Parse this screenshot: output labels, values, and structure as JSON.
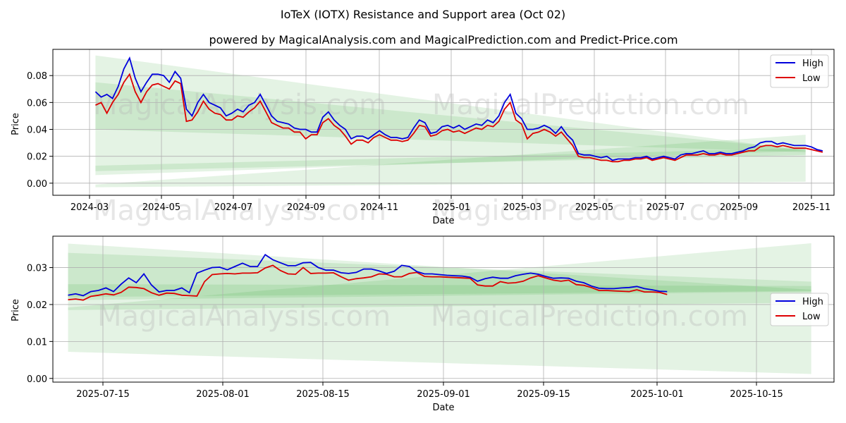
{
  "title": "IoTeX (IOTX) Resistance and Support area (Oct 02)",
  "subtitle": "powered by MagicalAnalysis.com and MagicalPrediction.com and Predict-Price.com",
  "watermarks": [
    "MagicalAnalysis.com",
    "MagicalPrediction.com"
  ],
  "colors": {
    "high": "#0000dd",
    "low": "#dd0000",
    "band": "#2ca02c"
  },
  "chart_data": [
    {
      "type": "line",
      "panel": "top",
      "xlabel": "Date",
      "ylabel": "Price",
      "x_ticks": [
        "2024-03",
        "2024-05",
        "2024-07",
        "2024-09",
        "2024-11",
        "2025-01",
        "2025-03",
        "2025-05",
        "2025-07",
        "2025-09",
        "2025-11"
      ],
      "y_ticks": [
        "0.00",
        "0.02",
        "0.04",
        "0.06",
        "0.08"
      ],
      "x_range_days": [
        -15,
        260
      ],
      "ylim": [
        -0.009,
        0.0995
      ],
      "legend": {
        "position": "top-right",
        "entries": [
          "High",
          "Low"
        ]
      },
      "series_points": {
        "x_days": [
          0,
          2,
          4,
          6,
          8,
          10,
          12,
          14,
          16,
          18,
          20,
          22,
          24,
          26,
          28,
          30,
          32,
          34,
          36,
          38,
          40,
          42,
          44,
          46,
          48,
          50,
          52,
          54,
          56,
          58,
          60,
          62,
          64,
          66,
          68,
          70,
          72,
          74,
          76,
          78,
          80,
          82,
          84,
          86,
          88,
          90,
          92,
          94,
          96,
          98,
          100,
          102,
          104,
          106,
          108,
          110,
          112,
          114,
          116,
          118,
          120,
          122,
          124,
          126,
          128,
          130,
          132,
          134,
          136,
          138,
          140,
          142,
          144,
          146,
          148,
          150,
          152,
          154,
          156,
          158,
          160,
          162,
          164,
          166,
          168,
          170,
          172,
          174,
          176,
          178,
          180,
          182,
          184,
          186,
          188,
          190,
          192,
          194,
          196,
          198,
          200,
          202,
          204,
          206,
          208,
          210,
          212,
          214,
          216,
          218,
          220,
          222,
          224,
          226,
          228,
          230,
          232,
          234,
          236,
          238,
          240,
          242,
          244,
          246,
          248,
          250,
          252,
          254,
          256
        ],
        "high": [
          0.068,
          0.064,
          0.066,
          0.063,
          0.072,
          0.085,
          0.093,
          0.078,
          0.068,
          0.075,
          0.081,
          0.081,
          0.08,
          0.075,
          0.083,
          0.078,
          0.055,
          0.05,
          0.06,
          0.066,
          0.06,
          0.058,
          0.056,
          0.05,
          0.052,
          0.055,
          0.053,
          0.058,
          0.06,
          0.066,
          0.058,
          0.05,
          0.046,
          0.045,
          0.044,
          0.041,
          0.04,
          0.04,
          0.038,
          0.038,
          0.049,
          0.053,
          0.047,
          0.043,
          0.04,
          0.033,
          0.035,
          0.035,
          0.033,
          0.036,
          0.039,
          0.036,
          0.034,
          0.034,
          0.033,
          0.034,
          0.041,
          0.047,
          0.045,
          0.037,
          0.038,
          0.042,
          0.043,
          0.041,
          0.043,
          0.04,
          0.042,
          0.044,
          0.043,
          0.047,
          0.045,
          0.05,
          0.06,
          0.066,
          0.052,
          0.048,
          0.04,
          0.04,
          0.041,
          0.043,
          0.041,
          0.037,
          0.042,
          0.036,
          0.032,
          0.022,
          0.021,
          0.021,
          0.02,
          0.019,
          0.02,
          0.017,
          0.018,
          0.018,
          0.018,
          0.019,
          0.019,
          0.02,
          0.018,
          0.019,
          0.02,
          0.019,
          0.018,
          0.021,
          0.022,
          0.022,
          0.023,
          0.024,
          0.022,
          0.022,
          0.023,
          0.022,
          0.022,
          0.023,
          0.024,
          0.026,
          0.027,
          0.03,
          0.031,
          0.031,
          0.029,
          0.03,
          0.029,
          0.028,
          0.028,
          0.028,
          0.027,
          0.025,
          0.024
        ],
        "low": [
          0.058,
          0.06,
          0.052,
          0.06,
          0.066,
          0.075,
          0.081,
          0.068,
          0.06,
          0.068,
          0.073,
          0.074,
          0.072,
          0.07,
          0.076,
          0.074,
          0.046,
          0.047,
          0.053,
          0.061,
          0.055,
          0.052,
          0.051,
          0.047,
          0.047,
          0.05,
          0.049,
          0.053,
          0.056,
          0.061,
          0.053,
          0.045,
          0.043,
          0.041,
          0.041,
          0.038,
          0.038,
          0.033,
          0.036,
          0.036,
          0.045,
          0.048,
          0.043,
          0.04,
          0.035,
          0.029,
          0.032,
          0.032,
          0.03,
          0.034,
          0.036,
          0.034,
          0.032,
          0.032,
          0.031,
          0.032,
          0.037,
          0.043,
          0.042,
          0.035,
          0.036,
          0.039,
          0.04,
          0.038,
          0.039,
          0.037,
          0.039,
          0.041,
          0.04,
          0.043,
          0.042,
          0.046,
          0.055,
          0.06,
          0.047,
          0.044,
          0.033,
          0.037,
          0.038,
          0.04,
          0.038,
          0.035,
          0.038,
          0.033,
          0.028,
          0.02,
          0.019,
          0.019,
          0.018,
          0.017,
          0.017,
          0.016,
          0.016,
          0.017,
          0.017,
          0.018,
          0.018,
          0.019,
          0.017,
          0.018,
          0.019,
          0.018,
          0.017,
          0.019,
          0.021,
          0.021,
          0.021,
          0.022,
          0.021,
          0.021,
          0.022,
          0.021,
          0.021,
          0.022,
          0.023,
          0.024,
          0.024,
          0.027,
          0.028,
          0.028,
          0.027,
          0.028,
          0.027,
          0.026,
          0.026,
          0.026,
          0.025,
          0.024,
          0.023
        ]
      },
      "bands": [
        {
          "x": [
            0,
            250
          ],
          "top": [
            0.095,
            0.024
          ],
          "bottom": [
            0.006,
            0.024
          ]
        },
        {
          "x": [
            0,
            250
          ],
          "top": [
            0.075,
            0.025
          ],
          "bottom": [
            0.04,
            0.023
          ]
        },
        {
          "x": [
            0,
            250
          ],
          "top": [
            -0.001,
            0.036
          ],
          "bottom": [
            -0.003,
            0.001
          ]
        },
        {
          "x": [
            0,
            250
          ],
          "top": [
            0.013,
            0.026
          ],
          "bottom": [
            0.009,
            0.021
          ]
        }
      ]
    },
    {
      "type": "line",
      "panel": "bottom",
      "xlabel": "Date",
      "ylabel": "Price",
      "x_ticks": [
        "2025-07-15",
        "2025-08-01",
        "2025-08-15",
        "2025-09-01",
        "2025-09-15",
        "2025-10-01",
        "2025-10-15"
      ],
      "y_ticks": [
        "0.00",
        "0.01",
        "0.02",
        "0.03"
      ],
      "x_range_days": [
        -2,
        101
      ],
      "ylim": [
        -0.001,
        0.0385
      ],
      "legend": {
        "position": "center-right",
        "entries": [
          "High",
          "Low"
        ]
      },
      "series_points": {
        "x_days": [
          0,
          1,
          2,
          3,
          4,
          5,
          6,
          7,
          8,
          9,
          10,
          11,
          12,
          13,
          14,
          15,
          16,
          17,
          18,
          19,
          20,
          21,
          22,
          23,
          24,
          25,
          26,
          27,
          28,
          29,
          30,
          31,
          32,
          33,
          34,
          35,
          36,
          37,
          38,
          39,
          40,
          41,
          42,
          43,
          44,
          45,
          46,
          47,
          48,
          49,
          50,
          51,
          52,
          53,
          54,
          55,
          56,
          57,
          58,
          59,
          60,
          61,
          62,
          63,
          64,
          65,
          66,
          67,
          68,
          69,
          70,
          71,
          72,
          73,
          74,
          75,
          76,
          77,
          78,
          79
        ],
        "high": [
          0.0225,
          0.0229,
          0.0224,
          0.0235,
          0.0238,
          0.0245,
          0.0235,
          0.0255,
          0.0272,
          0.0259,
          0.0283,
          0.0253,
          0.0234,
          0.0238,
          0.0238,
          0.0245,
          0.0232,
          0.0285,
          0.0293,
          0.03,
          0.0301,
          0.0294,
          0.0303,
          0.0312,
          0.0303,
          0.0303,
          0.0335,
          0.0321,
          0.0313,
          0.0305,
          0.0305,
          0.0313,
          0.0314,
          0.03,
          0.0293,
          0.0293,
          0.0286,
          0.0284,
          0.0287,
          0.0296,
          0.0296,
          0.0291,
          0.0284,
          0.029,
          0.0306,
          0.0303,
          0.0289,
          0.0283,
          0.0283,
          0.0281,
          0.0279,
          0.0278,
          0.0277,
          0.0274,
          0.0263,
          0.027,
          0.0274,
          0.0271,
          0.0271,
          0.0278,
          0.0282,
          0.0285,
          0.0282,
          0.0276,
          0.0271,
          0.0272,
          0.0271,
          0.0263,
          0.0259,
          0.025,
          0.0244,
          0.0243,
          0.0243,
          0.0245,
          0.0246,
          0.0249,
          0.0243,
          0.024,
          0.0236,
          0.0235
        ],
        "low": [
          0.0213,
          0.0215,
          0.0212,
          0.0222,
          0.0225,
          0.0229,
          0.0226,
          0.0233,
          0.0247,
          0.0246,
          0.0243,
          0.0232,
          0.0225,
          0.0231,
          0.023,
          0.0225,
          0.0224,
          0.0223,
          0.0262,
          0.0281,
          0.0283,
          0.0284,
          0.0283,
          0.0285,
          0.0285,
          0.0286,
          0.0299,
          0.0306,
          0.0292,
          0.0283,
          0.0282,
          0.03,
          0.0284,
          0.0285,
          0.0285,
          0.0286,
          0.0275,
          0.0266,
          0.027,
          0.0272,
          0.0275,
          0.0283,
          0.0282,
          0.0275,
          0.0275,
          0.0284,
          0.0287,
          0.0276,
          0.0275,
          0.0275,
          0.0274,
          0.0273,
          0.0272,
          0.0271,
          0.0253,
          0.025,
          0.025,
          0.0262,
          0.0258,
          0.0259,
          0.0263,
          0.0272,
          0.0278,
          0.0272,
          0.0266,
          0.0263,
          0.0266,
          0.0254,
          0.0252,
          0.0246,
          0.0238,
          0.0238,
          0.0237,
          0.0236,
          0.0235,
          0.024,
          0.0234,
          0.0234,
          0.0233,
          0.0227
        ]
      },
      "bands": [
        {
          "x": [
            0,
            98
          ],
          "top": [
            0.0365,
            0.024
          ],
          "bottom": [
            0.0072,
            0.0012
          ]
        },
        {
          "x": [
            0,
            98
          ],
          "top": [
            0.034,
            0.0262
          ],
          "bottom": [
            0.0212,
            0.0235
          ]
        },
        {
          "x": [
            0,
            98
          ],
          "top": [
            0.0192,
            0.0366
          ],
          "bottom": [
            0.0185,
            0.0205
          ]
        },
        {
          "x": [
            0,
            98
          ],
          "top": [
            0.0255,
            0.025
          ],
          "bottom": [
            0.022,
            0.0237
          ]
        }
      ]
    }
  ]
}
